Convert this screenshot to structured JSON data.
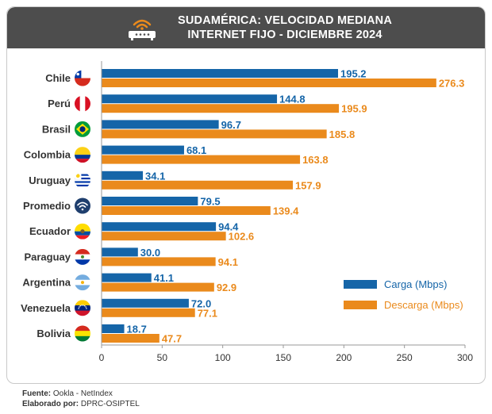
{
  "header": {
    "title_line1": "SUDAMÉRICA: VELOCIDAD MEDIANA",
    "title_line2": "INTERNET FIJO - DICIEMBRE 2024"
  },
  "footer": {
    "source_label": "Fuente:",
    "source_value": "Ookla - NetIndex",
    "made_label": "Elaborado por:",
    "made_value": "DPRC-OSIPTEL"
  },
  "colors": {
    "upload": "#1565a8",
    "download": "#ea8a1c",
    "header_bg": "#4d4d4d"
  },
  "chart_data": {
    "type": "bar",
    "orientation": "horizontal",
    "title": "SUDAMÉRICA: VELOCIDAD MEDIANA INTERNET FIJO - DICIEMBRE 2024",
    "categories": [
      "Chile",
      "Perú",
      "Brasil",
      "Colombia",
      "Uruguay",
      "Promedio",
      "Ecuador",
      "Paraguay",
      "Argentina",
      "Venezuela",
      "Bolivia"
    ],
    "icons": [
      "flag-chile-icon",
      "flag-peru-icon",
      "flag-brazil-icon",
      "flag-colombia-icon",
      "flag-uruguay-icon",
      "wifi-icon",
      "flag-ecuador-icon",
      "flag-paraguay-icon",
      "flag-argentina-icon",
      "flag-venezuela-icon",
      "flag-bolivia-icon"
    ],
    "series": [
      {
        "name": "Carga (Mbps)",
        "color": "#1565a8",
        "values": [
          195.2,
          144.8,
          96.7,
          68.1,
          34.1,
          79.5,
          94.4,
          30.0,
          41.1,
          72.0,
          18.7
        ],
        "labels": [
          "195.2",
          "144.8",
          "96.7",
          "68.1",
          "34.1",
          "79.5",
          "94.4",
          "30.0",
          "41.1",
          "72.0",
          "18.7"
        ]
      },
      {
        "name": "Descarga (Mbps)",
        "color": "#ea8a1c",
        "values": [
          276.3,
          195.9,
          185.8,
          163.8,
          157.9,
          139.4,
          102.6,
          94.1,
          92.9,
          77.1,
          47.7
        ],
        "labels": [
          "276.3",
          "195.9",
          "185.8",
          "163.8",
          "157.9",
          "139.4",
          "102.6",
          "94.1",
          "92.9",
          "77.1",
          "47.7"
        ]
      }
    ],
    "xlim": [
      0,
      300
    ],
    "xticks": [
      0,
      50,
      100,
      150,
      200,
      250,
      300
    ],
    "xtick_labels": [
      "0",
      "50",
      "100",
      "150",
      "200",
      "250",
      "300"
    ],
    "grid": false,
    "legend_position": "lower-right"
  }
}
